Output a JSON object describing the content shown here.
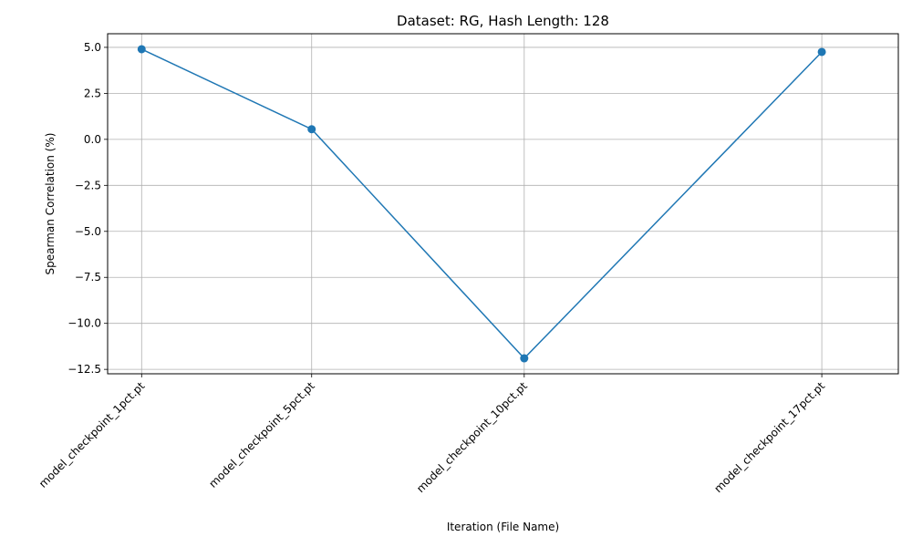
{
  "chart_data": {
    "type": "line",
    "title": "Dataset: RG, Hash Length: 128",
    "xlabel": "Iteration (File Name)",
    "ylabel": "Spearman Correlation (%)",
    "x": [
      1,
      5,
      10,
      17
    ],
    "categories": [
      "model_checkpoint_1pct.pt",
      "model_checkpoint_5pct.pt",
      "model_checkpoint_10pct.pt",
      "model_checkpoint_17pct.pt"
    ],
    "series": [
      {
        "values": [
          4.9,
          0.55,
          -11.9,
          4.75
        ],
        "color": "#1f77b4",
        "marker": "circle"
      }
    ],
    "xlim": [
      0.2,
      18.8
    ],
    "ylim": [
      -12.74,
      5.74
    ],
    "yticks": [
      5.0,
      2.5,
      0.0,
      -2.5,
      -5.0,
      -7.5,
      -10.0,
      -12.5
    ],
    "ytick_labels": [
      "5.0",
      "2.5",
      "0.0",
      "−2.5",
      "−5.0",
      "−7.5",
      "−10.0",
      "−12.5"
    ],
    "grid": true,
    "legend": "none"
  }
}
